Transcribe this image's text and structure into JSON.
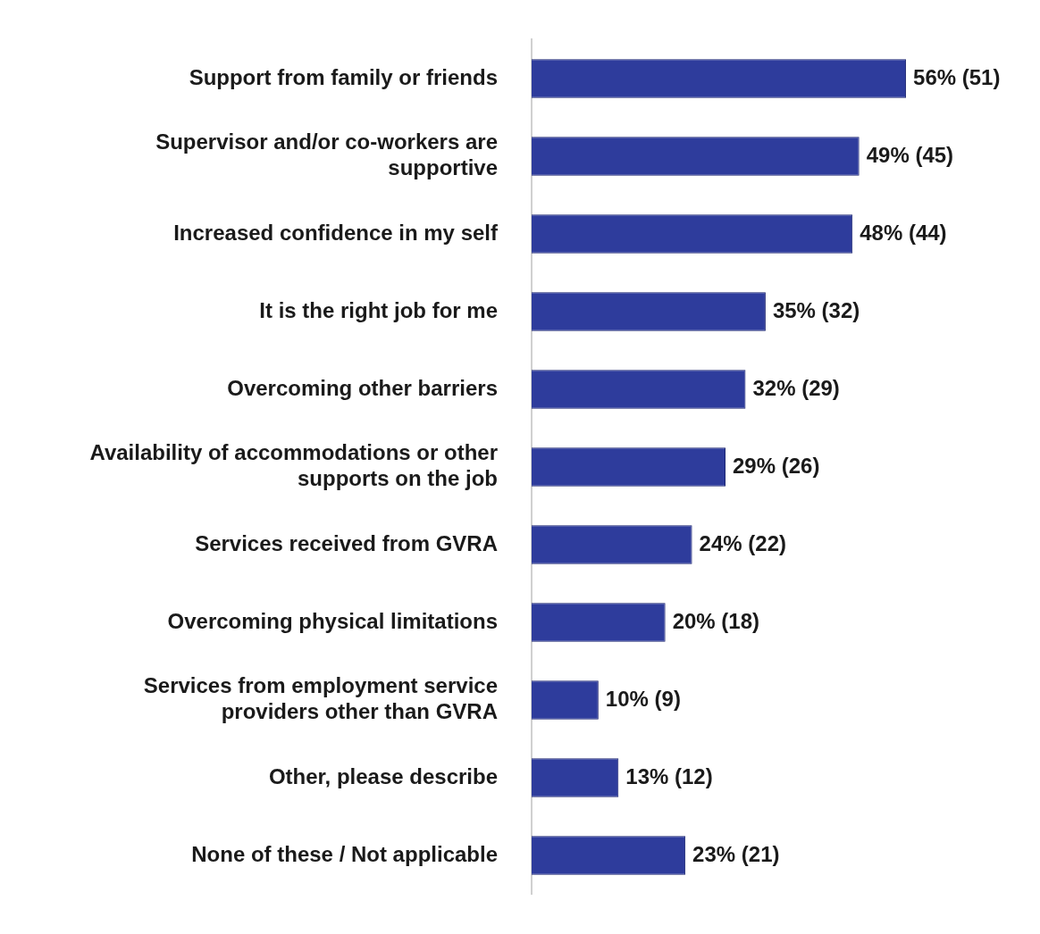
{
  "chart_data": {
    "type": "bar",
    "orientation": "horizontal",
    "categories": [
      "Support from family or friends",
      "Supervisor and/or co-workers are supportive",
      "Increased confidence in my self",
      "It is the right job for me",
      "Overcoming other barriers",
      "Availability of accommodations or other supports on the job",
      "Services received from GVRA",
      "Overcoming physical limitations",
      "Services from employment service providers other than GVRA",
      "Other, please describe",
      "None of these / Not applicable"
    ],
    "values": [
      56,
      49,
      48,
      35,
      32,
      29,
      24,
      20,
      10,
      13,
      23
    ],
    "value_labels": [
      "56% (51)",
      "49% (45)",
      "48% (44)",
      "35% (32)",
      "32% (29)",
      "29% (26)",
      "24% (22)",
      "20% (18)",
      "10% (9)",
      "13% (12)",
      "23% (21)"
    ],
    "color": "#2e3c9c",
    "tick_labels": "y",
    "legend": false
  }
}
